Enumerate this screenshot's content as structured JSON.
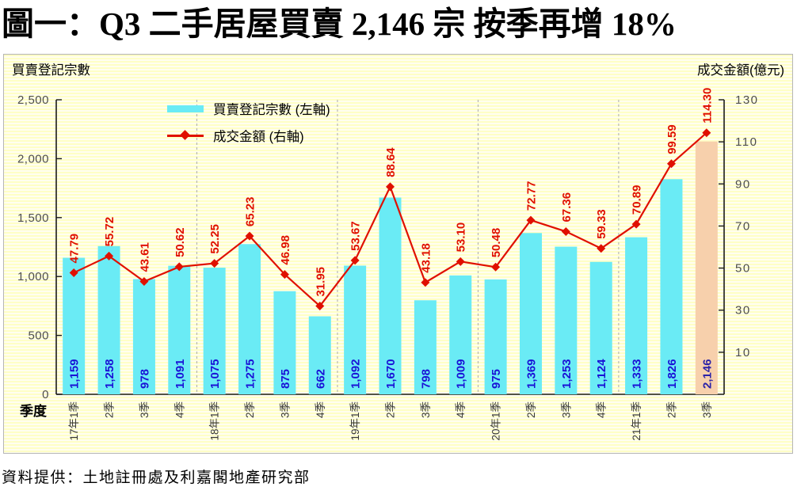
{
  "title": "圖一：Q3 二手居屋買賣 2,146 宗 按季再增 18%",
  "source": "資料提供：土地註冊處及利嘉閣地產研究部",
  "chart_data": {
    "type": "bar",
    "subtype": "bar+line combo, dual axis",
    "x_axis": {
      "title": "季度"
    },
    "left_axis": {
      "title": "買賣登記宗數",
      "min": 0,
      "max": 2500,
      "tick_values": [
        2500,
        2000,
        1500,
        1000,
        500,
        0
      ]
    },
    "right_axis": {
      "title": "成交金額(億元)",
      "min": -10,
      "max": 130,
      "tick_values": [
        130,
        110,
        90,
        70,
        50,
        30,
        10
      ]
    },
    "categories": [
      "17年1季",
      "2季",
      "3季",
      "4季",
      "18年1季",
      "2季",
      "3季",
      "4季",
      "19年1季",
      "2季",
      "3季",
      "4季",
      "20年1季",
      "2季",
      "3季",
      "4季",
      "21年1季",
      "2季",
      "3季"
    ],
    "series": [
      {
        "name": "買賣登記宗數 (左軸)",
        "type": "bar",
        "axis": "left",
        "values": [
          1159,
          1258,
          978,
          1091,
          1075,
          1275,
          875,
          662,
          1092,
          1670,
          798,
          1009,
          975,
          1369,
          1253,
          1124,
          1333,
          1826,
          2146
        ],
        "color": "#6AEBF5",
        "label_color": "#1A12D6",
        "highlight_index": 18,
        "highlight_color": "#F7D0AC",
        "highlight_label_color": "#2B22A8"
      },
      {
        "name": "成交金額 (右軸)",
        "type": "line",
        "axis": "right",
        "values": [
          47.79,
          55.72,
          43.61,
          50.62,
          52.25,
          65.23,
          46.98,
          31.95,
          53.67,
          88.64,
          43.18,
          53.1,
          50.48,
          72.77,
          67.36,
          59.33,
          70.89,
          99.59,
          114.3
        ],
        "color": "#E01000",
        "marker": "diamond",
        "label_color": "#E01000"
      }
    ],
    "year_separator_after_indices": [
      3,
      7,
      11,
      15
    ],
    "grid": "dashed vertical separators between years only",
    "legend_position": "top-left inside plot",
    "colors": {
      "canvas_stripe_a": "#FFFFC6",
      "canvas_stripe_b": "#FFFEF0",
      "axis_line": "#1A1A1A",
      "tick_label": "#4D4D4D",
      "x_tick_label": "#383838",
      "separator": "#ABABAB"
    }
  }
}
